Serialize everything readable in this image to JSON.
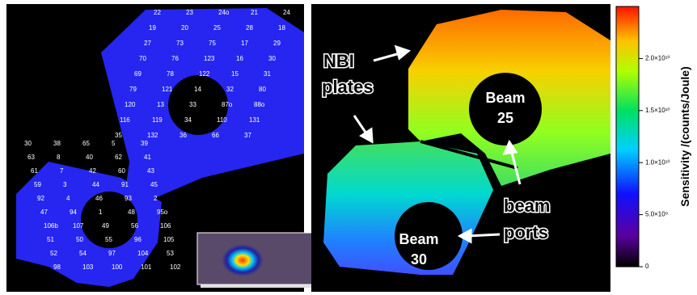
{
  "left_panel": {
    "labels": [
      "22",
      "23",
      "24o",
      "21",
      "24",
      "19",
      "20",
      "25",
      "28",
      "18",
      "27",
      "73",
      "75",
      "17",
      "29",
      "70",
      "76",
      "123",
      "16",
      "30",
      "69",
      "78",
      "122",
      "15",
      "31",
      "79",
      "121",
      "14",
      "32",
      "80",
      "120",
      "13",
      "33",
      "87o",
      "88o",
      "116",
      "119",
      "34",
      "110",
      "131",
      "35",
      "132",
      "36",
      "66",
      "37",
      "30",
      "38",
      "65",
      "5",
      "39",
      "63",
      "8",
      "40",
      "62",
      "41",
      "61",
      "7",
      "42",
      "60",
      "43",
      "59",
      "3",
      "44",
      "91",
      "45",
      "92",
      "4",
      "46",
      "93",
      "2",
      "47",
      "94",
      "1",
      "48",
      "95o",
      "106b",
      "107",
      "49",
      "56",
      "106",
      "51",
      "50",
      "55",
      "96",
      "105",
      "52",
      "54",
      "97",
      "104",
      "53",
      "98",
      "103",
      "100",
      "101",
      "102"
    ]
  },
  "right_panel": {
    "annotations": [
      "NBI",
      "plates",
      "Beam",
      "25",
      "Beam",
      "30",
      "beam",
      "ports"
    ]
  },
  "colorbar": {
    "title": "Sensitivity /(counts/Joule)",
    "lim": [
      0,
      25000000000
    ],
    "ticks": [
      0,
      {
        "value": 5000000000,
        "label": "5.0×10⁹"
      },
      {
        "value": 10000000000,
        "label": "1.0×10¹⁰"
      },
      {
        "value": 15000000000,
        "label": "1.5×10¹⁰"
      },
      {
        "value": 20000000000,
        "label": "2.0×10¹⁰"
      }
    ]
  }
}
